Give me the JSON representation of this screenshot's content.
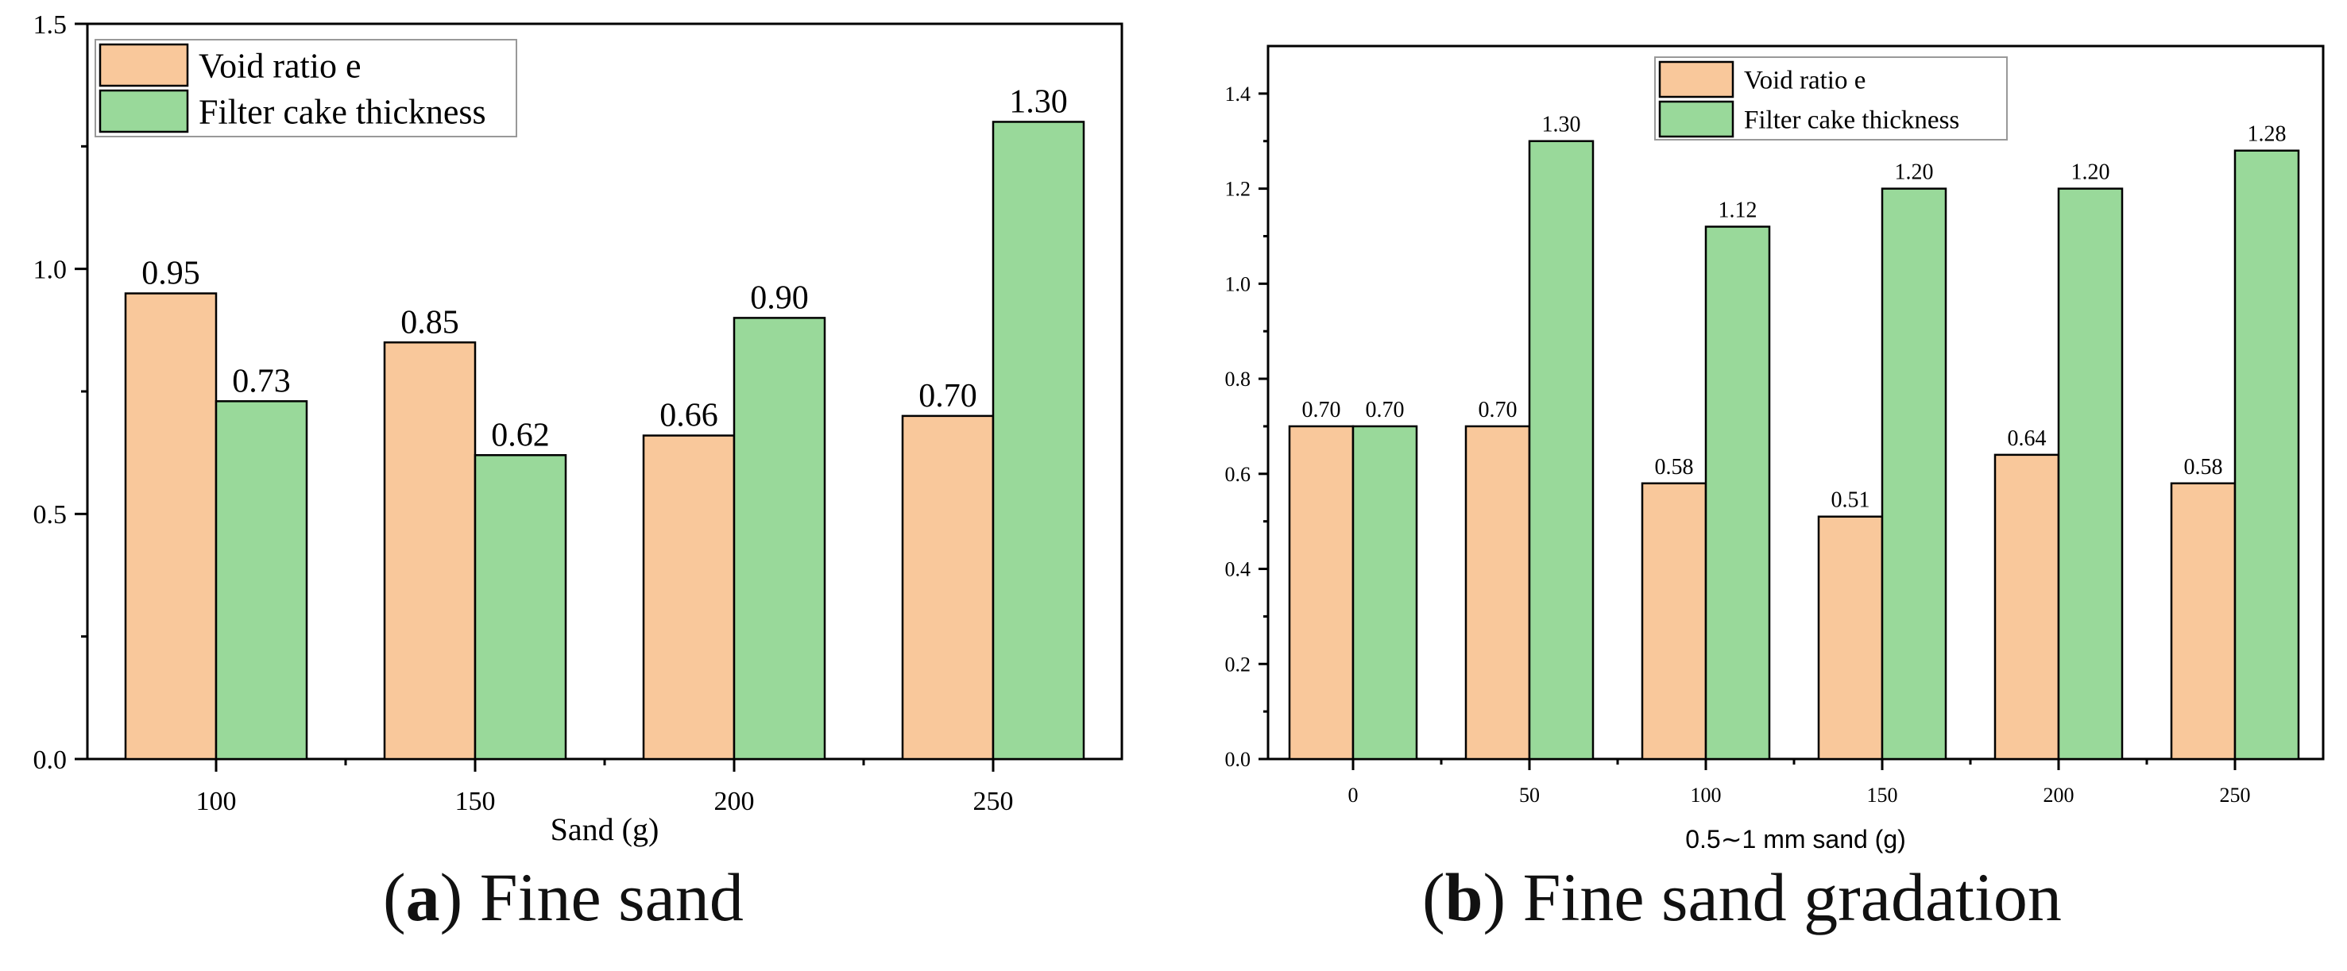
{
  "colors": {
    "void": "#f9c89b",
    "cake": "#99d99a",
    "axis": "#000000"
  },
  "chart_data": [
    {
      "type": "bar",
      "categories": [
        "100",
        "150",
        "200",
        "250"
      ],
      "series": [
        {
          "name": "Void ratio e",
          "values": [
            0.95,
            0.85,
            0.66,
            0.7
          ],
          "labels": [
            "0.95",
            "0.85",
            "0.66",
            "0.70"
          ]
        },
        {
          "name": "Filter cake thickness",
          "values": [
            0.73,
            0.62,
            0.9,
            1.3
          ],
          "labels": [
            "0.73",
            "0.62",
            "0.90",
            "1.30"
          ]
        }
      ],
      "ylim": [
        0,
        1.5
      ],
      "yticks": [
        "0.0",
        "0.5",
        "1.0",
        "1.5"
      ],
      "xlabel": "Sand (g)",
      "ylabel": "",
      "legend": "top-left"
    },
    {
      "type": "bar",
      "categories": [
        "0",
        "50",
        "100",
        "150",
        "200",
        "250"
      ],
      "series": [
        {
          "name": "Void ratio e",
          "values": [
            0.7,
            0.7,
            0.58,
            0.51,
            0.64,
            0.58
          ],
          "labels": [
            "0.70",
            "0.70",
            "0.58",
            "0.51",
            "0.64",
            "0.58"
          ]
        },
        {
          "name": "Filter cake thickness",
          "values": [
            0.7,
            1.3,
            1.12,
            1.2,
            1.2,
            1.28
          ],
          "labels": [
            "0.70",
            "1.30",
            "1.12",
            "1.20",
            "1.20",
            "1.28"
          ]
        }
      ],
      "ylim": [
        0,
        1.5
      ],
      "yticks": [
        "0.0",
        "0.2",
        "0.4",
        "0.6",
        "0.8",
        "1.0",
        "1.2",
        "1.4"
      ],
      "xlabel": "0.5∼1 mm sand (g)",
      "ylabel": "",
      "legend": "top-center"
    }
  ],
  "captions": [
    {
      "letter": "a",
      "text": " Fine sand"
    },
    {
      "letter": "b",
      "text": " Fine sand gradation"
    }
  ]
}
